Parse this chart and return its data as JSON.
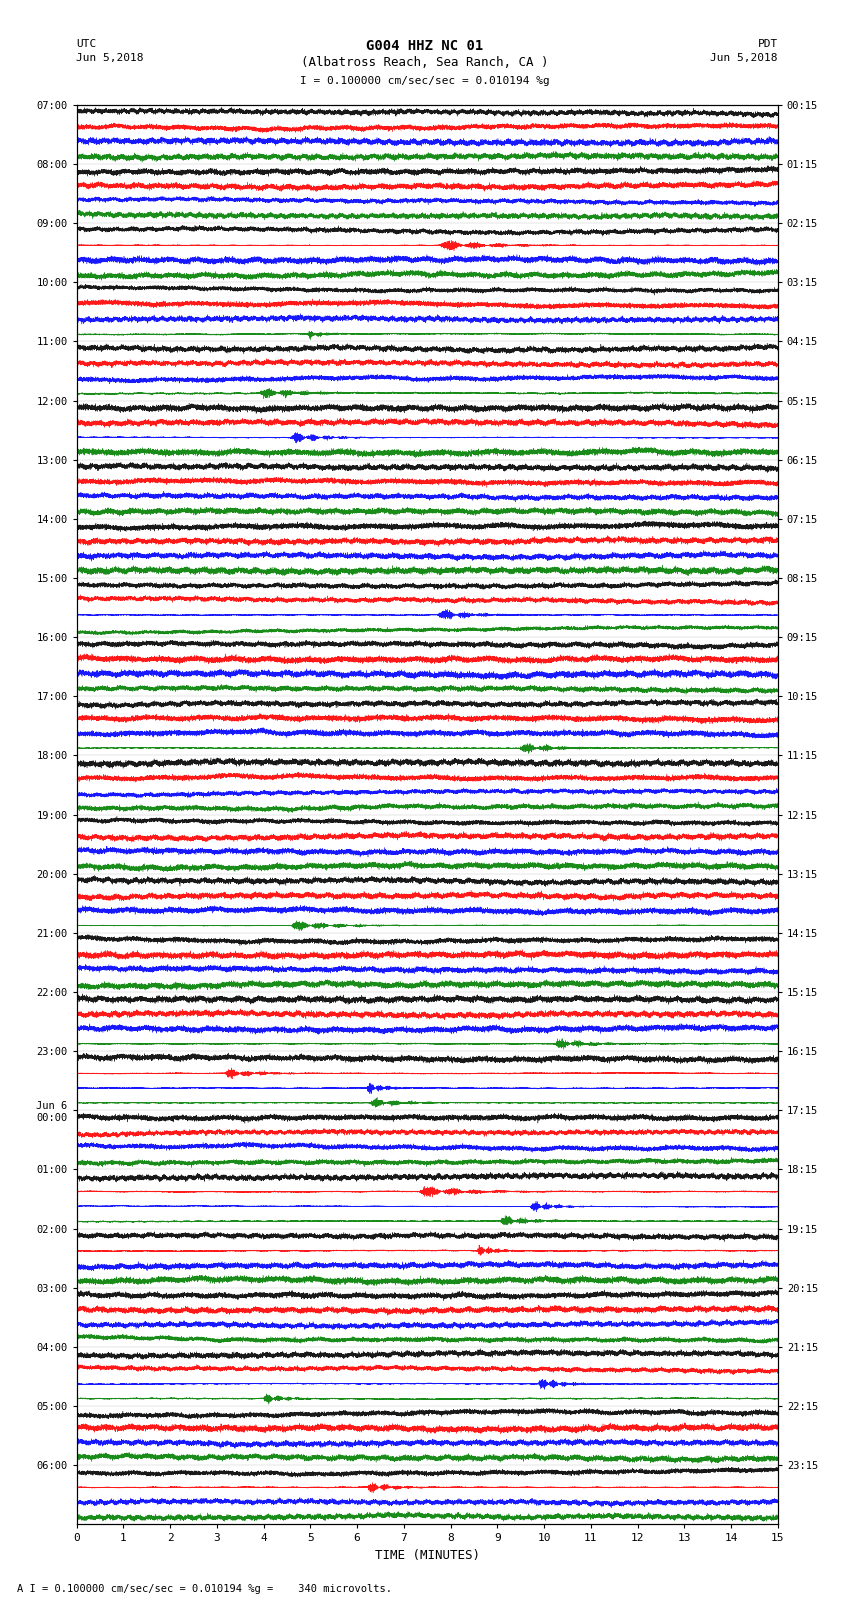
{
  "title_line1": "G004 HHZ NC 01",
  "title_line2": "(Albatross Reach, Sea Ranch, CA )",
  "scale_label": "I = 0.100000 cm/sec/sec = 0.010194 %g",
  "left_label_top": "UTC",
  "left_label_date": "Jun 5,2018",
  "right_label_top": "PDT",
  "right_label_date": "Jun 5,2018",
  "xlabel": "TIME (MINUTES)",
  "footer": "A I = 0.100000 cm/sec/sec = 0.010194 %g =    340 microvolts.",
  "utc_times": [
    "07:00",
    "08:00",
    "09:00",
    "10:00",
    "11:00",
    "12:00",
    "13:00",
    "14:00",
    "15:00",
    "16:00",
    "17:00",
    "18:00",
    "19:00",
    "20:00",
    "21:00",
    "22:00",
    "23:00",
    "Jun 6\n00:00",
    "01:00",
    "02:00",
    "03:00",
    "04:00",
    "05:00",
    "06:00"
  ],
  "pdt_times": [
    "00:15",
    "01:15",
    "02:15",
    "03:15",
    "04:15",
    "05:15",
    "06:15",
    "07:15",
    "08:15",
    "09:15",
    "10:15",
    "11:15",
    "12:15",
    "13:15",
    "14:15",
    "15:15",
    "16:15",
    "17:15",
    "18:15",
    "19:15",
    "20:15",
    "21:15",
    "22:15",
    "23:15"
  ],
  "trace_colors": [
    "black",
    "red",
    "blue",
    "green"
  ],
  "n_hours": 24,
  "traces_per_hour": 4,
  "minutes": 15,
  "background_color": "white",
  "plot_bg": "white",
  "xmin": 0,
  "xmax": 15
}
